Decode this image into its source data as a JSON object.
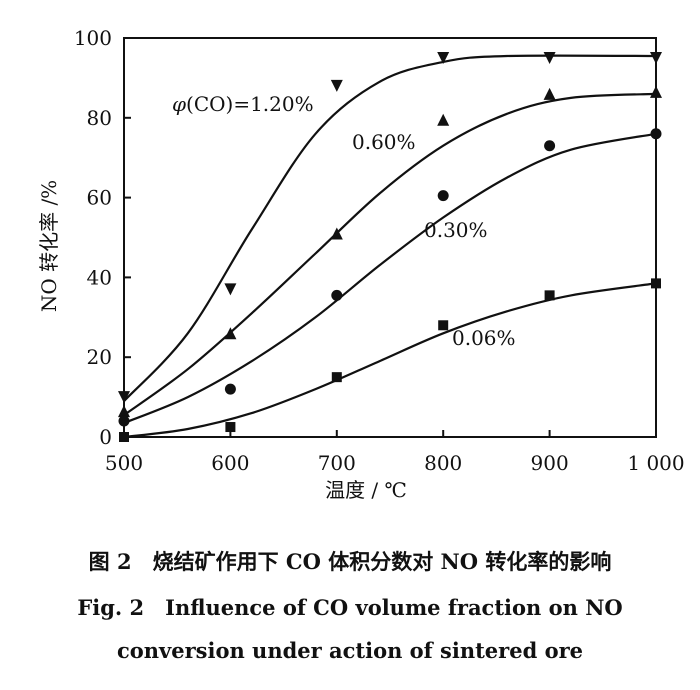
{
  "chart_data": {
    "type": "line",
    "title": "",
    "xlabel": "温度 / ℃",
    "ylabel": "NO 转化率 /%",
    "xlim": [
      500,
      1000
    ],
    "ylim": [
      0,
      100
    ],
    "x_ticks": [
      {
        "value": 500,
        "label": "500"
      },
      {
        "value": 600,
        "label": "600"
      },
      {
        "value": 700,
        "label": "700"
      },
      {
        "value": 800,
        "label": "800"
      },
      {
        "value": 900,
        "label": "900"
      },
      {
        "value": 1000,
        "label": "1 000"
      }
    ],
    "y_ticks": [
      {
        "value": 0,
        "label": "0"
      },
      {
        "value": 20,
        "label": "20"
      },
      {
        "value": 40,
        "label": "40"
      },
      {
        "value": 60,
        "label": "60"
      },
      {
        "value": 80,
        "label": "80"
      },
      {
        "value": 100,
        "label": "100"
      }
    ],
    "grid": false,
    "legend": "none",
    "series": [
      {
        "name": "φ(CO)=1.20%",
        "marker": "triangle-down",
        "x": [
          500,
          600,
          700,
          800,
          900,
          1000
        ],
        "points": [
          10,
          37,
          88,
          95,
          95,
          95
        ],
        "curve": [
          [
            500,
            9
          ],
          [
            560,
            26
          ],
          [
            620,
            52
          ],
          [
            680,
            76
          ],
          [
            740,
            89
          ],
          [
            800,
            94
          ],
          [
            860,
            95.5
          ],
          [
            1000,
            95.5
          ]
        ]
      },
      {
        "name": "0.60%",
        "marker": "triangle-up",
        "x": [
          500,
          600,
          700,
          800,
          900,
          1000
        ],
        "points": [
          6.5,
          26,
          51,
          79.5,
          86,
          86.5
        ],
        "curve": [
          [
            500,
            5.5
          ],
          [
            560,
            17
          ],
          [
            620,
            31
          ],
          [
            680,
            46
          ],
          [
            740,
            61
          ],
          [
            800,
            73
          ],
          [
            860,
            81
          ],
          [
            920,
            85
          ],
          [
            1000,
            86
          ]
        ]
      },
      {
        "name": "0.30%",
        "marker": "circle",
        "x": [
          500,
          600,
          700,
          800,
          900,
          1000
        ],
        "points": [
          4,
          12,
          35.5,
          60.5,
          73,
          76
        ],
        "curve": [
          [
            500,
            3.5
          ],
          [
            560,
            10
          ],
          [
            620,
            19
          ],
          [
            680,
            30
          ],
          [
            740,
            43
          ],
          [
            800,
            55
          ],
          [
            860,
            65
          ],
          [
            920,
            72
          ],
          [
            1000,
            76
          ]
        ]
      },
      {
        "name": "0.06%",
        "marker": "square",
        "x": [
          500,
          600,
          700,
          800,
          900,
          1000
        ],
        "points": [
          0,
          2.5,
          15,
          28,
          35.5,
          38.5
        ],
        "curve": [
          [
            500,
            0
          ],
          [
            560,
            2
          ],
          [
            620,
            6
          ],
          [
            680,
            12
          ],
          [
            740,
            19
          ],
          [
            800,
            26
          ],
          [
            860,
            31.5
          ],
          [
            920,
            35.5
          ],
          [
            1000,
            38.5
          ]
        ]
      }
    ]
  },
  "caption": {
    "cn": "图 2　烧结矿作用下 CO 体积分数对 NO 转化率的影响",
    "en_line1": "Fig. 2　Influence of CO volume fraction on NO",
    "en_line2": "conversion under action of sintered ore"
  }
}
